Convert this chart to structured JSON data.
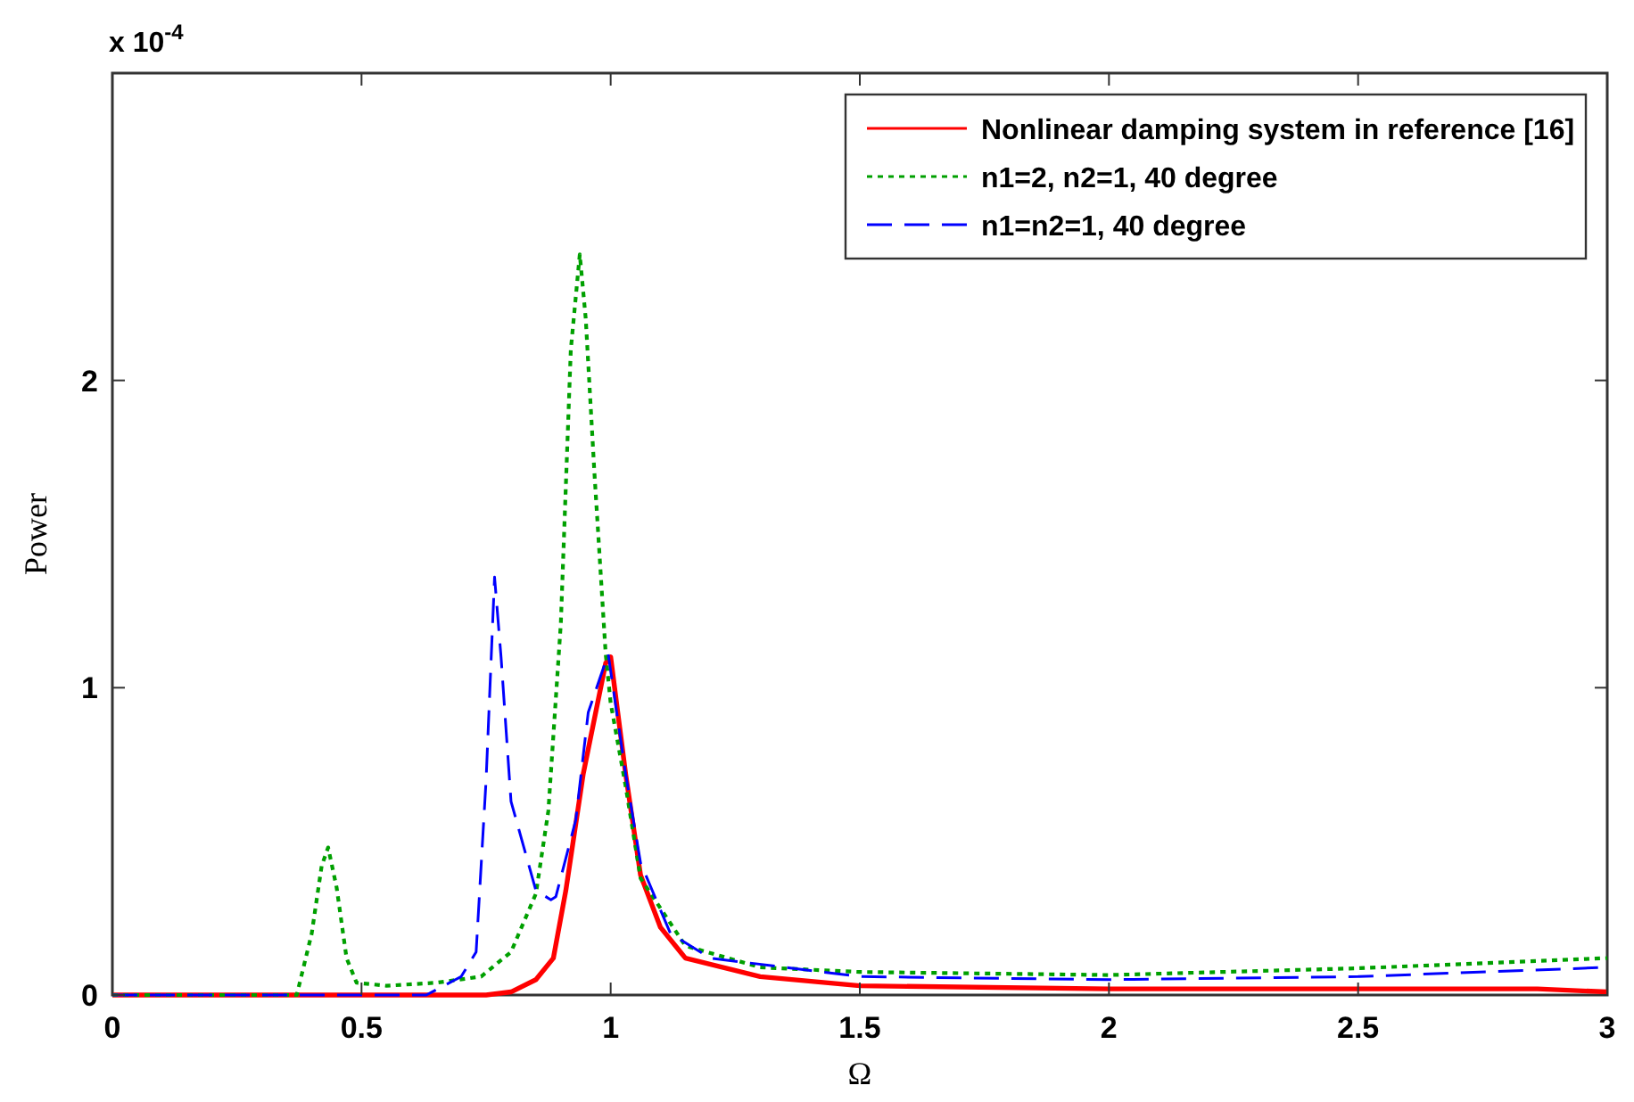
{
  "chart_data": {
    "type": "line",
    "xlabel": "Ω",
    "ylabel": "Power",
    "annotations": [
      "x 10$^{-4}$"
    ],
    "xlim": [
      0,
      3
    ],
    "xticks": [
      0,
      0.5,
      1,
      1.5,
      2,
      2.5,
      3
    ],
    "ylim": [
      0,
      3
    ],
    "yticks": [
      0,
      1,
      2,
      {
        "value": 3,
        "label": null
      }
    ],
    "grid": false,
    "legend": "top right",
    "marker": "none",
    "series": [
      {
        "name": "Nonlinear damping system in reference [16]",
        "color": "#ff0000",
        "line_style": "solid",
        "x": [
          0,
          0.75,
          0.8,
          0.85,
          0.885,
          0.91,
          0.945,
          0.99,
          1.0,
          1.03,
          1.06,
          1.1,
          1.15,
          1.3,
          1.5,
          2,
          2.86,
          3
        ],
        "values": [
          0,
          0,
          0.01,
          0.05,
          0.12,
          0.34,
          0.72,
          1.08,
          1.1,
          0.72,
          0.39,
          0.22,
          0.12,
          0.06,
          0.03,
          0.02,
          0.02,
          0.01
        ]
      },
      {
        "name": "n1=2, n2=1, 40 degree",
        "color": "#00a000",
        "line_style": "dotted",
        "x": [
          0,
          0.37,
          0.4,
          0.42,
          0.433,
          0.45,
          0.47,
          0.49,
          0.55,
          0.65,
          0.74,
          0.8,
          0.85,
          0.875,
          0.9,
          0.92,
          0.938,
          0.95,
          0.967,
          0.99,
          1.0,
          1.03,
          1.06,
          1.15,
          1.3,
          1.5,
          2,
          2.5,
          3
        ],
        "values": [
          0,
          0,
          0.2,
          0.42,
          0.48,
          0.35,
          0.12,
          0.04,
          0.03,
          0.04,
          0.06,
          0.14,
          0.33,
          0.6,
          1.21,
          2.1,
          2.41,
          2.2,
          1.71,
          1.11,
          0.95,
          0.68,
          0.38,
          0.16,
          0.09,
          0.075,
          0.065,
          0.087,
          0.12
        ]
      },
      {
        "name": "n1=n2=1, 40 degree",
        "color": "#0000ff",
        "line_style": "dashed",
        "x": [
          0,
          0.63,
          0.7,
          0.73,
          0.75,
          0.767,
          0.78,
          0.8,
          0.85,
          0.88,
          0.89,
          0.93,
          0.955,
          0.995,
          1.03,
          1.06,
          1.12,
          1.2,
          1.5,
          2,
          2.5,
          3
        ],
        "values": [
          0,
          0,
          0.06,
          0.14,
          0.7,
          1.36,
          1.1,
          0.63,
          0.34,
          0.31,
          0.32,
          0.57,
          0.92,
          1.11,
          0.72,
          0.43,
          0.2,
          0.12,
          0.06,
          0.05,
          0.06,
          0.09
        ]
      }
    ]
  }
}
